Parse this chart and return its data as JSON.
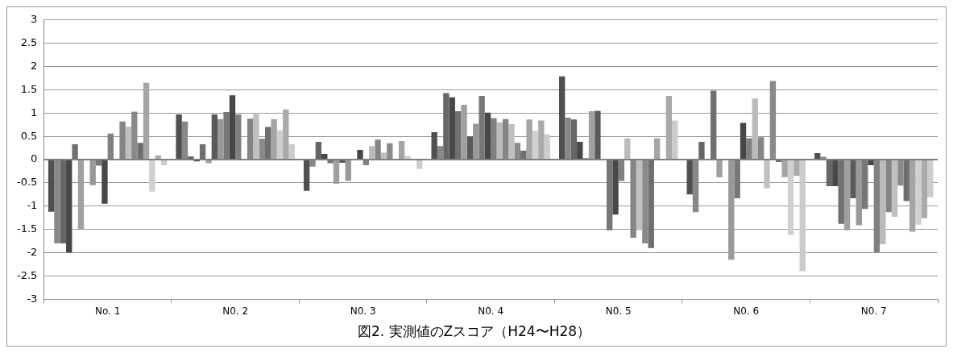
{
  "chart_data": {
    "type": "bar",
    "title": "図2. 実測値のZスコア（H24〜H28）",
    "categories": [
      "No. 1",
      "N0. 2",
      "N0. 3",
      "N0. 4",
      "N0. 5",
      "N0. 6",
      "N0. 7"
    ],
    "ylim": [
      -3,
      3
    ],
    "yticks": [
      -3,
      -2.5,
      -2,
      -1.5,
      -1,
      -0.5,
      0,
      0.5,
      1,
      1.5,
      2,
      2.5,
      3
    ],
    "grid": "y",
    "legend": false,
    "series": [
      {
        "color": "#505050",
        "values": [
          -1.12,
          0.97,
          -0.67,
          0.59,
          1.79,
          -0.75,
          0.14
        ]
      },
      {
        "color": "#888888",
        "values": [
          -1.8,
          0.82,
          -0.15,
          0.29,
          0.9,
          -1.13,
          0.06
        ]
      },
      {
        "color": "#666666",
        "values": [
          -1.8,
          0.07,
          0.38,
          1.43,
          0.86,
          0.38,
          -0.57
        ]
      },
      {
        "color": "#484848",
        "values": [
          -2.0,
          -0.04,
          0.12,
          1.34,
          0.38,
          null,
          -0.57
        ]
      },
      {
        "color": "#707070",
        "values": [
          0.33,
          0.33,
          -0.08,
          1.04,
          0.03,
          1.48,
          -1.38
        ]
      },
      {
        "color": "#a0a0a0",
        "values": [
          -1.5,
          -0.08,
          -0.52,
          1.18,
          1.04,
          -0.38,
          -1.52
        ]
      },
      {
        "color": "#5a5a5a",
        "values": [
          null,
          0.97,
          -0.07,
          0.5,
          1.05,
          null,
          -0.83
        ]
      },
      {
        "color": "#999999",
        "values": [
          -0.55,
          0.87,
          -0.46,
          0.77,
          null,
          -2.15,
          -1.41
        ]
      },
      {
        "color": "#777777",
        "values": [
          -0.13,
          1.02,
          null,
          1.37,
          -1.52,
          -0.83,
          -1.06
        ]
      },
      {
        "color": "#474747",
        "values": [
          -0.95,
          1.38,
          0.21,
          1.01,
          -1.18,
          0.79,
          -0.12
        ]
      },
      {
        "color": "#808080",
        "values": [
          0.56,
          0.97,
          -0.12,
          0.89,
          -0.46,
          0.46,
          -1.99
        ]
      },
      {
        "color": "#bbbbbb",
        "values": [
          null,
          null,
          0.29,
          0.8,
          0.46,
          1.31,
          -1.82
        ]
      },
      {
        "color": "#858585",
        "values": [
          0.82,
          0.88,
          0.43,
          0.87,
          -1.68,
          0.48,
          -1.13
        ]
      },
      {
        "color": "#c0c0c0",
        "values": [
          0.71,
          1.0,
          0.15,
          0.76,
          -1.52,
          -0.62,
          -1.23
        ]
      },
      {
        "color": "#8a8a8a",
        "values": [
          1.03,
          0.45,
          0.35,
          0.36,
          -1.8,
          1.69,
          -0.56
        ]
      },
      {
        "color": "#6e6e6e",
        "values": [
          0.36,
          0.7,
          null,
          0.19,
          -1.9,
          -0.05,
          -0.89
        ]
      },
      {
        "color": "#a5a5a5",
        "values": [
          1.65,
          0.87,
          0.4,
          0.86,
          0.46,
          -0.38,
          -1.55
        ]
      },
      {
        "color": "#d0d0d0",
        "values": [
          -0.69,
          0.63,
          0.08,
          0.62,
          null,
          -1.62,
          -1.4
        ]
      },
      {
        "color": "#aaaaaa",
        "values": [
          0.09,
          1.08,
          null,
          0.84,
          1.37,
          -0.35,
          -1.26
        ]
      },
      {
        "color": "#cccccc",
        "values": [
          -0.12,
          0.33,
          -0.2,
          0.54,
          0.84,
          -2.4,
          -0.81
        ]
      }
    ]
  }
}
